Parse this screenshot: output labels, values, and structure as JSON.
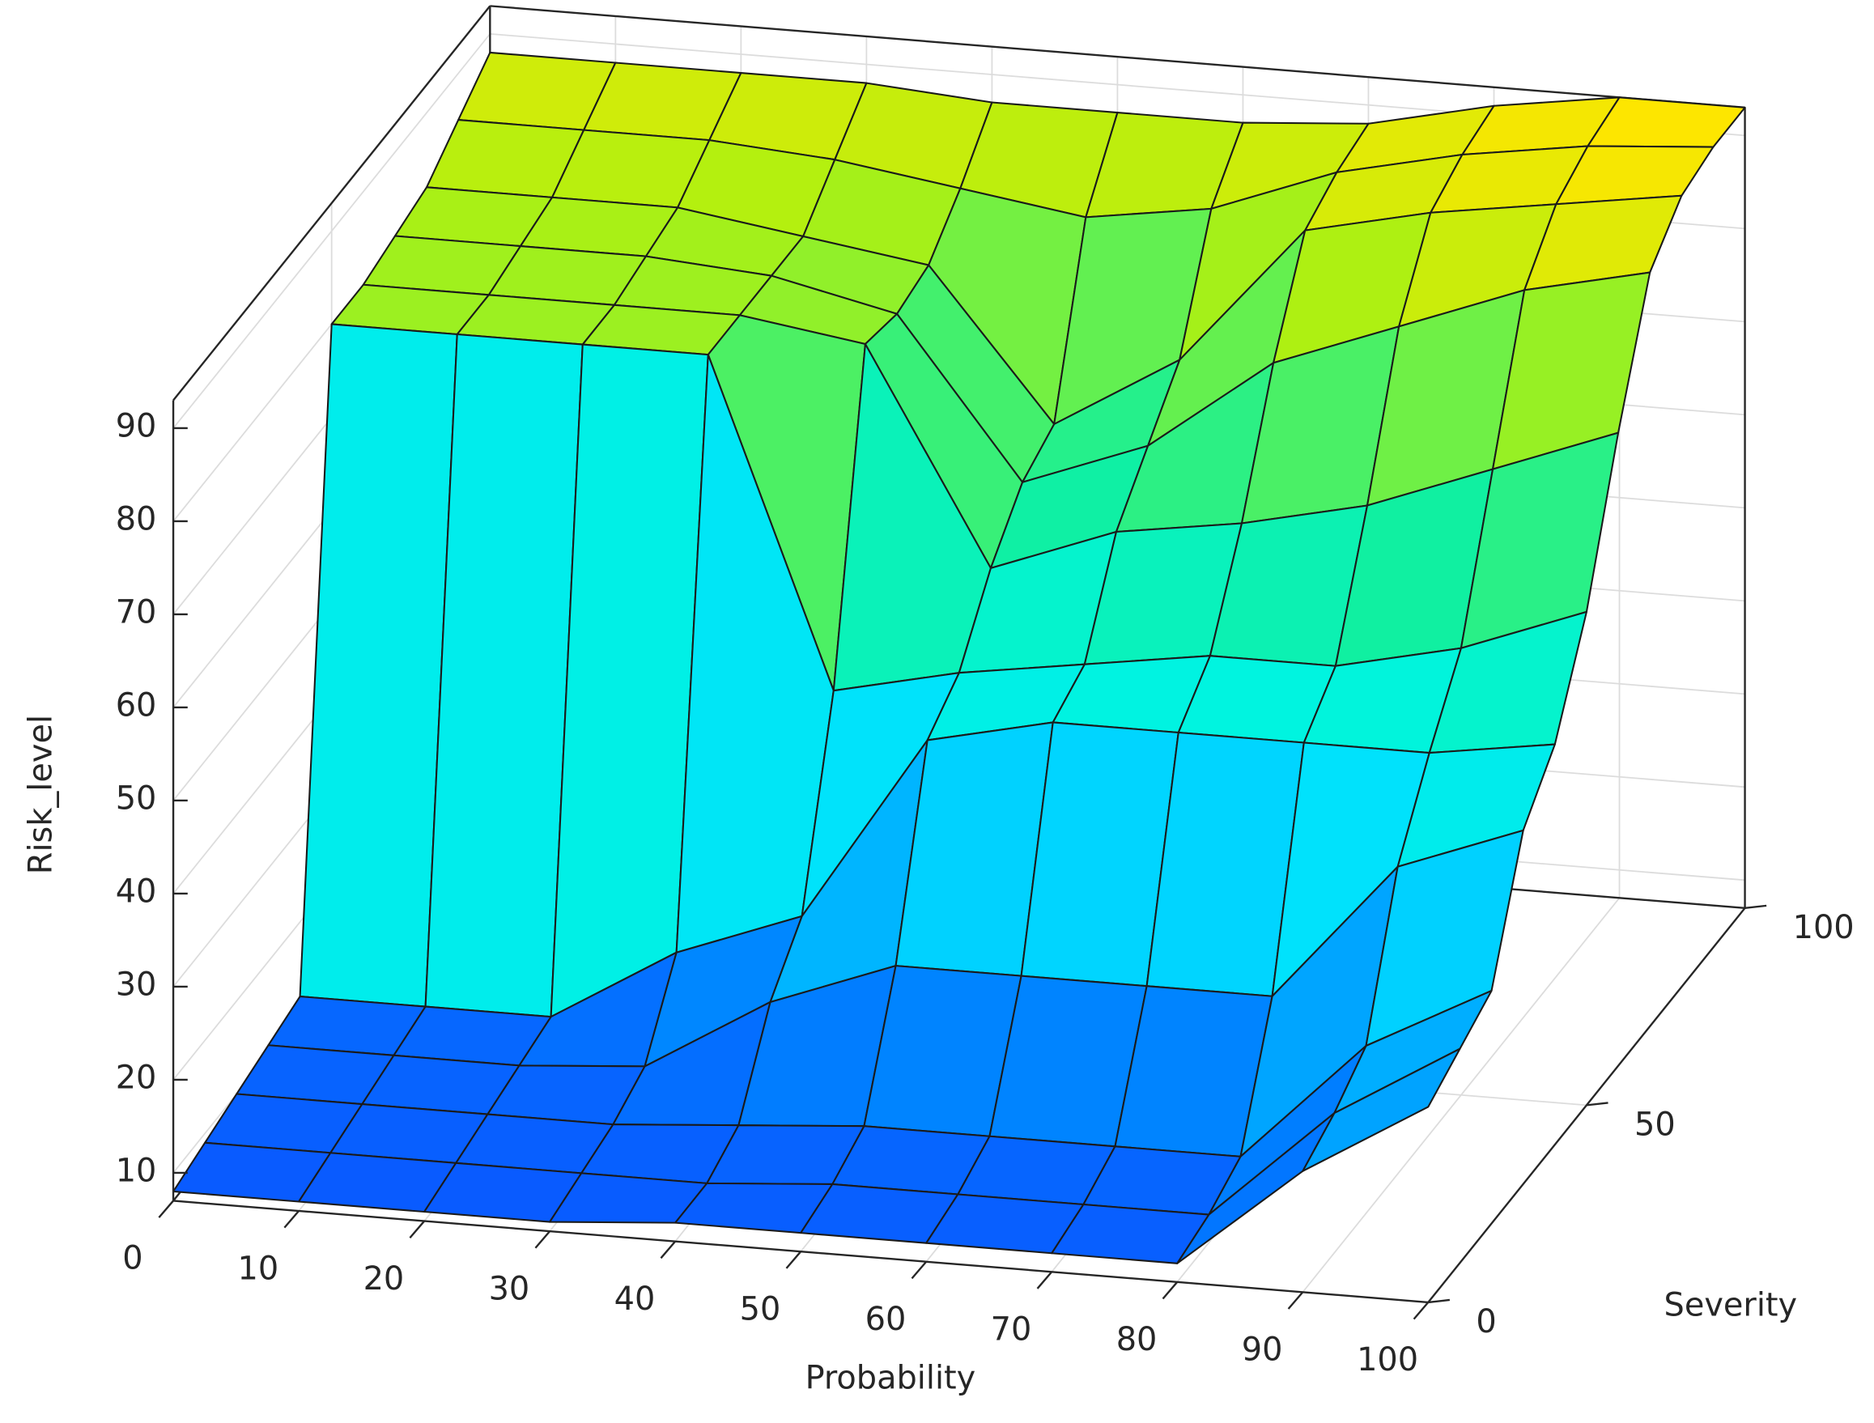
{
  "chart_data": {
    "type": "surface",
    "xlabel": "Probability",
    "ylabel": "Severity",
    "zlabel": "Risk_level",
    "x": [
      0,
      10,
      20,
      30,
      40,
      50,
      60,
      70,
      80,
      90,
      100
    ],
    "y": [
      0,
      10,
      20,
      30,
      40,
      50,
      60,
      70,
      80,
      90,
      100
    ],
    "z": [
      [
        8,
        8,
        8,
        8,
        9,
        9,
        9,
        9,
        9,
        20,
        28
      ],
      [
        9,
        9,
        9,
        9,
        9,
        10,
        10,
        10,
        10,
        22,
        30
      ],
      [
        10,
        10,
        10,
        10,
        11,
        12,
        12,
        12,
        12,
        25,
        32
      ],
      [
        11,
        11,
        11,
        12,
        20,
        25,
        25,
        25,
        25,
        40,
        45
      ],
      [
        12,
        12,
        12,
        20,
        25,
        45,
        48,
        48,
        48,
        48,
        50
      ],
      [
        80,
        80,
        80,
        80,
        45,
        48,
        50,
        52,
        52,
        55,
        60
      ],
      [
        80,
        80,
        80,
        80,
        78,
        55,
        60,
        62,
        65,
        70,
        75
      ],
      [
        81,
        81,
        81,
        80,
        77,
        60,
        65,
        75,
        80,
        85,
        88
      ],
      [
        82,
        82,
        82,
        80,
        78,
        62,
        70,
        85,
        88,
        90,
        92
      ],
      [
        85,
        85,
        85,
        84,
        82,
        80,
        82,
        87,
        90,
        92,
        93
      ],
      [
        88,
        88,
        88,
        88,
        87,
        87,
        87,
        88,
        91,
        93,
        93
      ]
    ],
    "xlim": [
      0,
      100
    ],
    "ylim": [
      0,
      100
    ],
    "zlim": [
      7,
      93
    ],
    "xticks": [
      0,
      10,
      20,
      30,
      40,
      50,
      60,
      70,
      80,
      90,
      100
    ],
    "yticks": [
      0,
      50,
      100
    ],
    "zticks": [
      10,
      20,
      30,
      40,
      50,
      60,
      70,
      80,
      90
    ],
    "grid": true,
    "colormap": [
      "#0a55ff",
      "#0080ff",
      "#00b4ff",
      "#00e0ff",
      "#00f4e0",
      "#10f0a0",
      "#50f060",
      "#b0f010",
      "#ffe600"
    ]
  }
}
